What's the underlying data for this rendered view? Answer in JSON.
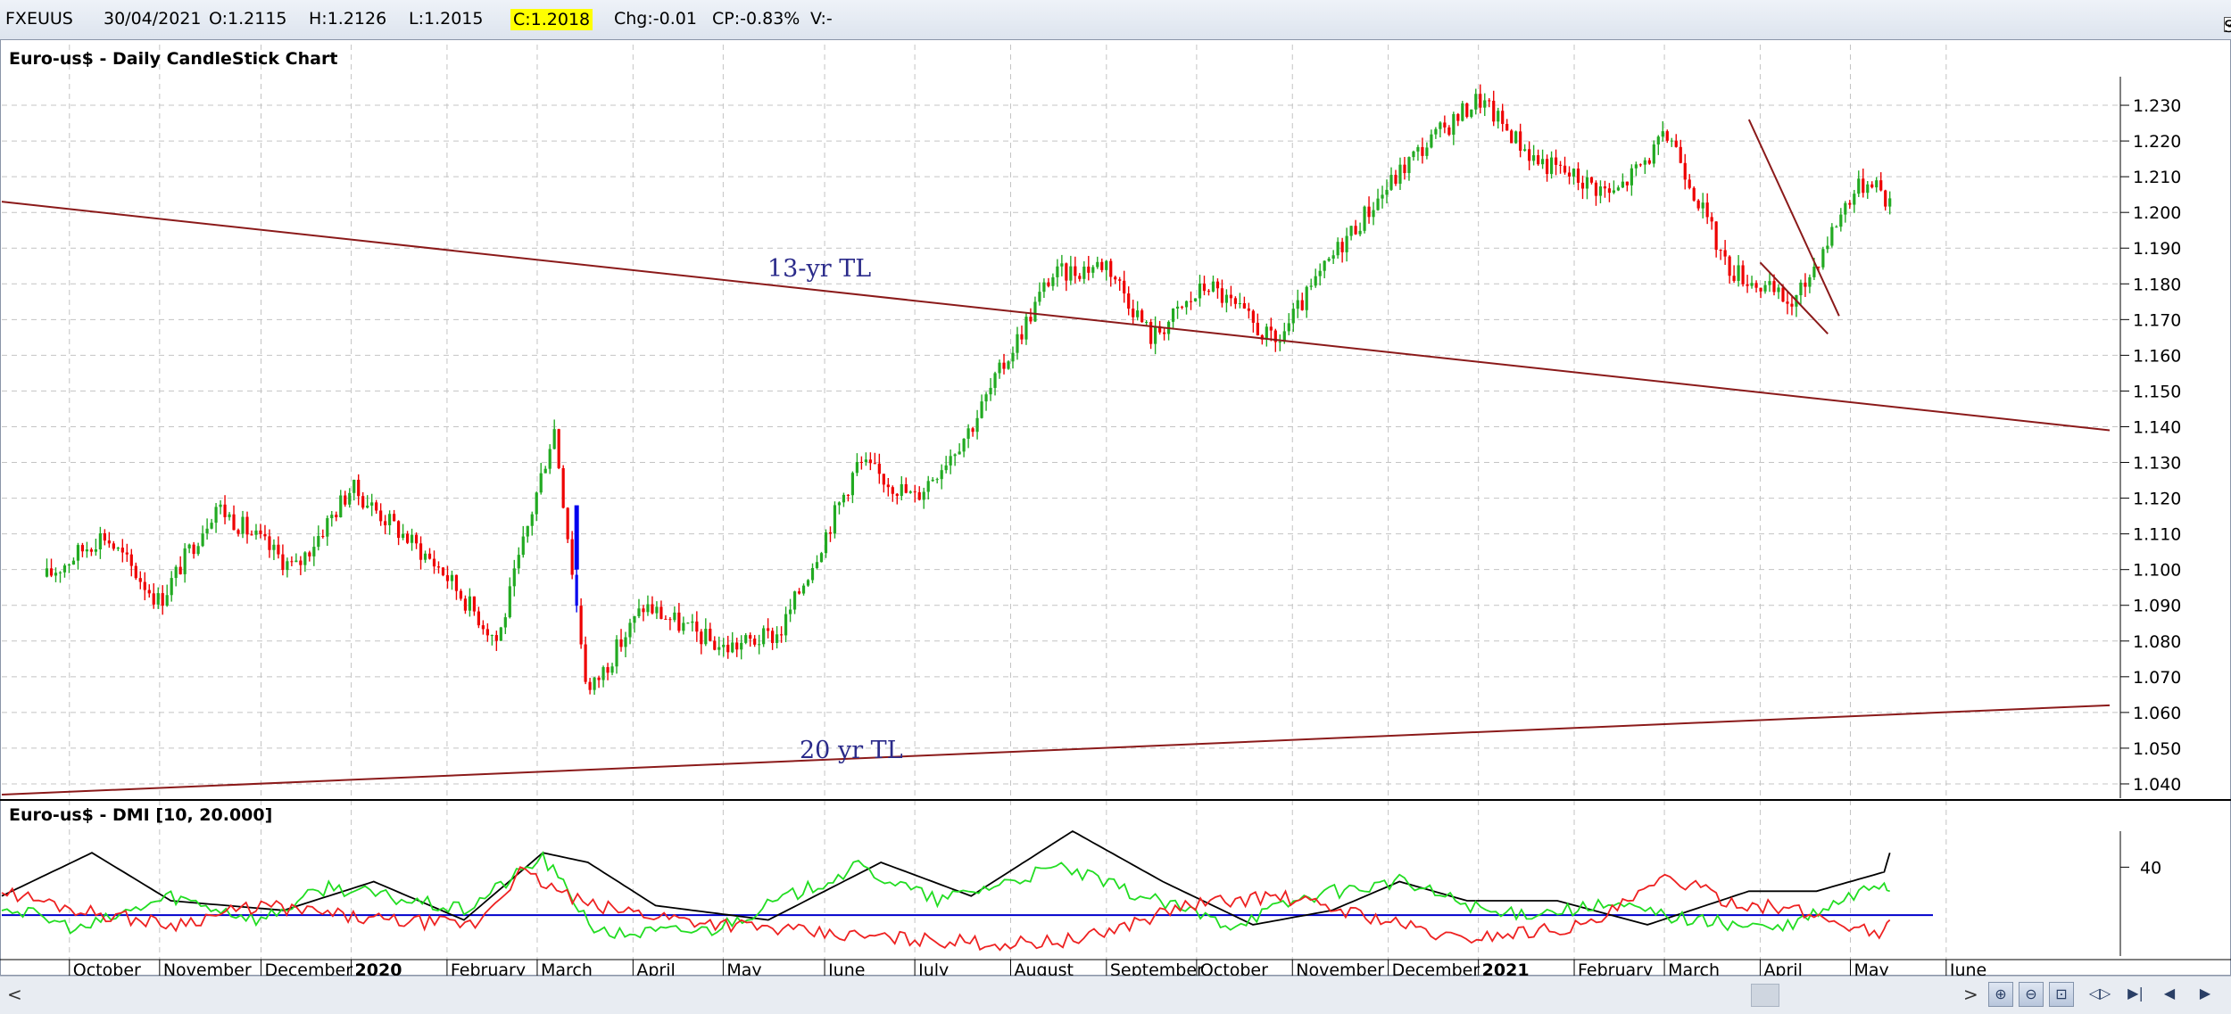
{
  "info_bar": {
    "symbol": "FXEUUS",
    "date": "30/04/2021",
    "open": "O:1.2115",
    "high": "H:1.2126",
    "low": "L:1.2015",
    "close": "C:1.2018",
    "change": "Chg:-0.01",
    "change_pct": "CP:-0.83%",
    "volume": "V:-",
    "show_last_label": "Show Last",
    "show_last_checked": true
  },
  "scrollbar": {
    "left_arrow": "<",
    "right_arrow": ">",
    "nav_icons": [
      "zoom-in-icon",
      "zoom-out-icon",
      "fit-icon",
      "pan-both-icon",
      "jump-end-icon",
      "step-left-icon",
      "step-right-icon"
    ]
  },
  "colors": {
    "up_candle": "#22aa22",
    "down_candle": "#ee0000",
    "highlight_candle": "#0000ee",
    "trendline": "#8b1a1a",
    "annotation_text": "#2a2a8a",
    "dmi_adx": "#000000",
    "dmi_plus": "#22dd22",
    "dmi_minus": "#ee2222",
    "dmi_threshold": "#0000cc",
    "grid": "#c4c4c4"
  },
  "chart_data": [
    {
      "type": "candlestick",
      "title": "Euro-us$ - Daily CandleStick Chart",
      "ylim": [
        1.036,
        1.238
      ],
      "y_ticks": [
        "1.040",
        "1.050",
        "1.060",
        "1.070",
        "1.080",
        "1.090",
        "1.100",
        "1.110",
        "1.120",
        "1.130",
        "1.140",
        "1.150",
        "1.160",
        "1.170",
        "1.180",
        "1.190",
        "1.200",
        "1.210",
        "1.220",
        "1.230"
      ],
      "x_labels": [
        "October",
        "November",
        "December",
        "2020",
        "February",
        "March",
        "April",
        "May",
        "June",
        "July",
        "August",
        "September",
        "October",
        "November",
        "December",
        "2021",
        "February",
        "March",
        "April",
        "May",
        "June"
      ],
      "bold_x_labels": [
        "2020",
        "2021"
      ],
      "grid": true,
      "price_path": [
        [
          2019.73,
          1.098
        ],
        [
          2019.78,
          1.11
        ],
        [
          2019.83,
          1.091
        ],
        [
          2019.88,
          1.118
        ],
        [
          2019.95,
          1.1
        ],
        [
          2020.0,
          1.123
        ],
        [
          2020.08,
          1.1
        ],
        [
          2020.13,
          1.08
        ],
        [
          2020.18,
          1.14
        ],
        [
          2020.21,
          1.065
        ],
        [
          2020.26,
          1.09
        ],
        [
          2020.33,
          1.078
        ],
        [
          2020.38,
          1.082
        ],
        [
          2020.45,
          1.13
        ],
        [
          2020.5,
          1.12
        ],
        [
          2020.55,
          1.14
        ],
        [
          2020.62,
          1.182
        ],
        [
          2020.67,
          1.186
        ],
        [
          2020.71,
          1.165
        ],
        [
          2020.76,
          1.18
        ],
        [
          2020.82,
          1.163
        ],
        [
          2020.88,
          1.192
        ],
        [
          2020.94,
          1.215
        ],
        [
          2021.0,
          1.232
        ],
        [
          2021.05,
          1.215
        ],
        [
          2021.12,
          1.205
        ],
        [
          2021.17,
          1.222
        ],
        [
          2021.22,
          1.185
        ],
        [
          2021.28,
          1.174
        ],
        [
          2021.33,
          1.205
        ],
        [
          2021.35,
          1.21
        ],
        [
          2021.365,
          1.2018
        ]
      ],
      "highlight": {
        "date": 2020.2,
        "open": 1.118,
        "close": 1.1
      },
      "trendlines": [
        {
          "label": "13-yr TL",
          "from": [
            2019.69,
            1.203
          ],
          "to": [
            2021.56,
            1.139
          ]
        },
        {
          "label": "20 yr TL",
          "from": [
            2019.69,
            1.037
          ],
          "to": [
            2021.56,
            1.062
          ]
        },
        {
          "label": "",
          "from": [
            2021.24,
            1.226
          ],
          "to": [
            2021.32,
            1.171
          ]
        },
        {
          "label": "",
          "from": [
            2021.25,
            1.186
          ],
          "to": [
            2021.31,
            1.166
          ]
        }
      ]
    },
    {
      "type": "line",
      "title": "Euro-us$ - DMI [10, 20.000]",
      "ylim": [
        0,
        55
      ],
      "y_ticks": [
        "40"
      ],
      "threshold": 20,
      "series": [
        {
          "key": "adx",
          "points": [
            [
              2019.69,
              28
            ],
            [
              2019.77,
              46
            ],
            [
              2019.84,
              26
            ],
            [
              2019.94,
              22
            ],
            [
              2020.02,
              34
            ],
            [
              2020.1,
              18
            ],
            [
              2020.17,
              46
            ],
            [
              2020.21,
              42
            ],
            [
              2020.27,
              24
            ],
            [
              2020.37,
              18
            ],
            [
              2020.47,
              42
            ],
            [
              2020.55,
              28
            ],
            [
              2020.64,
              55
            ],
            [
              2020.72,
              34
            ],
            [
              2020.8,
              16
            ],
            [
              2020.87,
              22
            ],
            [
              2020.93,
              34
            ],
            [
              2020.99,
              26
            ],
            [
              2021.07,
              26
            ],
            [
              2021.15,
              16
            ],
            [
              2021.24,
              30
            ],
            [
              2021.3,
              30
            ],
            [
              2021.36,
              38
            ],
            [
              2021.365,
              46
            ]
          ]
        },
        {
          "key": "plus",
          "points": [
            [
              2019.69,
              24
            ],
            [
              2019.76,
              14
            ],
            [
              2019.84,
              28
            ],
            [
              2019.92,
              18
            ],
            [
              2019.98,
              32
            ],
            [
              2020.1,
              22
            ],
            [
              2020.17,
              44
            ],
            [
              2020.22,
              12
            ],
            [
              2020.32,
              14
            ],
            [
              2020.45,
              40
            ],
            [
              2020.52,
              26
            ],
            [
              2020.63,
              40
            ],
            [
              2020.7,
              28
            ],
            [
              2020.78,
              16
            ],
            [
              2020.85,
              28
            ],
            [
              2020.93,
              34
            ],
            [
              2021.02,
              20
            ],
            [
              2021.12,
              24
            ],
            [
              2021.19,
              18
            ],
            [
              2021.27,
              14
            ],
            [
              2021.36,
              34
            ],
            [
              2021.365,
              30
            ]
          ]
        },
        {
          "key": "minus",
          "points": [
            [
              2019.69,
              30
            ],
            [
              2019.76,
              22
            ],
            [
              2019.84,
              16
            ],
            [
              2019.92,
              24
            ],
            [
              2020.02,
              18
            ],
            [
              2020.11,
              16
            ],
            [
              2020.15,
              38
            ],
            [
              2020.21,
              24
            ],
            [
              2020.3,
              18
            ],
            [
              2020.42,
              12
            ],
            [
              2020.5,
              10
            ],
            [
              2020.58,
              8
            ],
            [
              2020.65,
              10
            ],
            [
              2020.74,
              24
            ],
            [
              2020.82,
              28
            ],
            [
              2020.9,
              20
            ],
            [
              2020.98,
              10
            ],
            [
              2021.1,
              16
            ],
            [
              2021.17,
              36
            ],
            [
              2021.22,
              26
            ],
            [
              2021.28,
              22
            ],
            [
              2021.36,
              12
            ],
            [
              2021.365,
              18
            ]
          ]
        }
      ]
    }
  ]
}
